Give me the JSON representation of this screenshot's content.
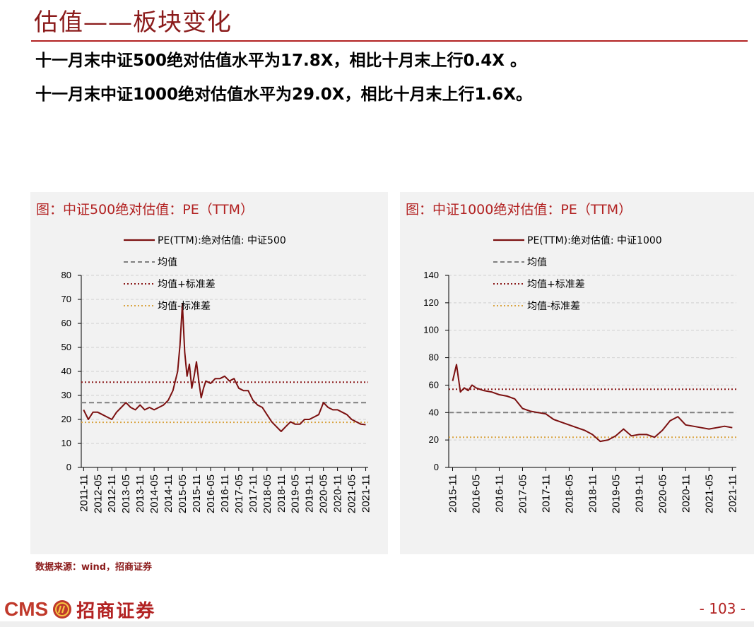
{
  "header": {
    "title": "估值——板块变化",
    "bullets": [
      "十一月末中证500绝对估值水平为17.8X，相比十月末上行0.4X 。",
      "十一月末中证1000绝对估值水平为29.0X，相比十月末上行1.6X。"
    ]
  },
  "source": "数据来源：wind，招商证券",
  "footer": {
    "logo_text": "CMS",
    "logo_cn": "招商证券",
    "page": "- 103 -"
  },
  "colors": {
    "series": "#7b1010",
    "mean": "#7f7f7f",
    "plus_sd": "#8b1a1a",
    "minus_sd": "#d9a441"
  },
  "chart_data": [
    {
      "type": "line",
      "title": "图：中证500绝对估值：PE（TTM）",
      "legend": [
        "PE(TTM):绝对估值: 中证500",
        "均值",
        "均值+标准差",
        "均值-标准差"
      ],
      "ylim": [
        0,
        80
      ],
      "yticks": [
        "0",
        "10",
        "20",
        "30",
        "40",
        "50",
        "60",
        "70",
        "80"
      ],
      "xtick_labels": [
        "2011-11",
        "2012-05",
        "2012-11",
        "2013-05",
        "2013-11",
        "2014-05",
        "2014-11",
        "2015-05",
        "2015-11",
        "2016-05",
        "2016-11",
        "2017-05",
        "2017-11",
        "2018-05",
        "2018-11",
        "2019-05",
        "2019-11",
        "2020-05",
        "2020-11",
        "2021-05",
        "2021-11"
      ],
      "x_start": 2011.75,
      "x_end": 2021.92,
      "mean": 27,
      "mean_plus_sd": 35.5,
      "mean_minus_sd": 18.8,
      "series": {
        "x": [
          "2011-11",
          "2012-01",
          "2012-03",
          "2012-05",
          "2012-07",
          "2012-09",
          "2012-11",
          "2013-01",
          "2013-03",
          "2013-05",
          "2013-07",
          "2013-09",
          "2013-11",
          "2014-01",
          "2014-03",
          "2014-05",
          "2014-07",
          "2014-09",
          "2014-11",
          "2015-01",
          "2015-03",
          "2015-04",
          "2015-05",
          "2015-06",
          "2015-07",
          "2015-08",
          "2015-09",
          "2015-10",
          "2015-11",
          "2015-12",
          "2016-01",
          "2016-02",
          "2016-03",
          "2016-05",
          "2016-07",
          "2016-09",
          "2016-11",
          "2017-01",
          "2017-03",
          "2017-05",
          "2017-07",
          "2017-09",
          "2017-11",
          "2018-01",
          "2018-03",
          "2018-05",
          "2018-07",
          "2018-09",
          "2018-11",
          "2019-01",
          "2019-03",
          "2019-05",
          "2019-07",
          "2019-09",
          "2019-11",
          "2020-01",
          "2020-03",
          "2020-05",
          "2020-07",
          "2020-09",
          "2020-11",
          "2021-01",
          "2021-03",
          "2021-05",
          "2021-07",
          "2021-09",
          "2021-11"
        ],
        "y": [
          24,
          20,
          23,
          23,
          22,
          21,
          20,
          23,
          25,
          27,
          25,
          24,
          26,
          24,
          25,
          24,
          25,
          26,
          28,
          32,
          40,
          51,
          68,
          48,
          38,
          43,
          33,
          38,
          44,
          36,
          29,
          33,
          36,
          35,
          37,
          37,
          38,
          36,
          37,
          33,
          32,
          32,
          28,
          26,
          25,
          22,
          19,
          17,
          15,
          17,
          19,
          18,
          18,
          20,
          20,
          21,
          22,
          27,
          25,
          24,
          24,
          23,
          22,
          20,
          19,
          18,
          17.8
        ]
      }
    },
    {
      "type": "line",
      "title": "图：中证1000绝对估值：PE（TTM）",
      "legend": [
        "PE(TTM):绝对估值: 中证1000",
        "均值",
        "均值+标准差",
        "均值-标准差"
      ],
      "ylim": [
        0,
        140
      ],
      "yticks": [
        "0",
        "20",
        "40",
        "60",
        "80",
        "100",
        "120",
        "140"
      ],
      "xtick_labels": [
        "2015-11",
        "2016-05",
        "2016-11",
        "2017-05",
        "2017-11",
        "2018-05",
        "2018-11",
        "2019-05",
        "2019-11",
        "2020-05",
        "2020-11",
        "2021-05",
        "2021-11"
      ],
      "x_start": 2015.75,
      "x_end": 2021.92,
      "mean": 40,
      "mean_plus_sd": 57,
      "mean_minus_sd": 22,
      "series": {
        "x": [
          "2015-11",
          "2015-12",
          "2016-01",
          "2016-02",
          "2016-03",
          "2016-04",
          "2016-05",
          "2016-07",
          "2016-09",
          "2016-11",
          "2017-01",
          "2017-03",
          "2017-05",
          "2017-07",
          "2017-09",
          "2017-11",
          "2018-01",
          "2018-03",
          "2018-05",
          "2018-07",
          "2018-09",
          "2018-11",
          "2019-01",
          "2019-03",
          "2019-05",
          "2019-07",
          "2019-09",
          "2019-11",
          "2020-01",
          "2020-03",
          "2020-05",
          "2020-07",
          "2020-09",
          "2020-11",
          "2021-01",
          "2021-03",
          "2021-05",
          "2021-07",
          "2021-09",
          "2021-11"
        ],
        "y": [
          63,
          75,
          55,
          58,
          56,
          60,
          58,
          56,
          55,
          53,
          52,
          50,
          43,
          41,
          40,
          39,
          35,
          33,
          31,
          29,
          27,
          24,
          19,
          20,
          23,
          28,
          23,
          24,
          24,
          22,
          27,
          34,
          37,
          31,
          30,
          29,
          28,
          29,
          30,
          29.0
        ]
      }
    }
  ]
}
